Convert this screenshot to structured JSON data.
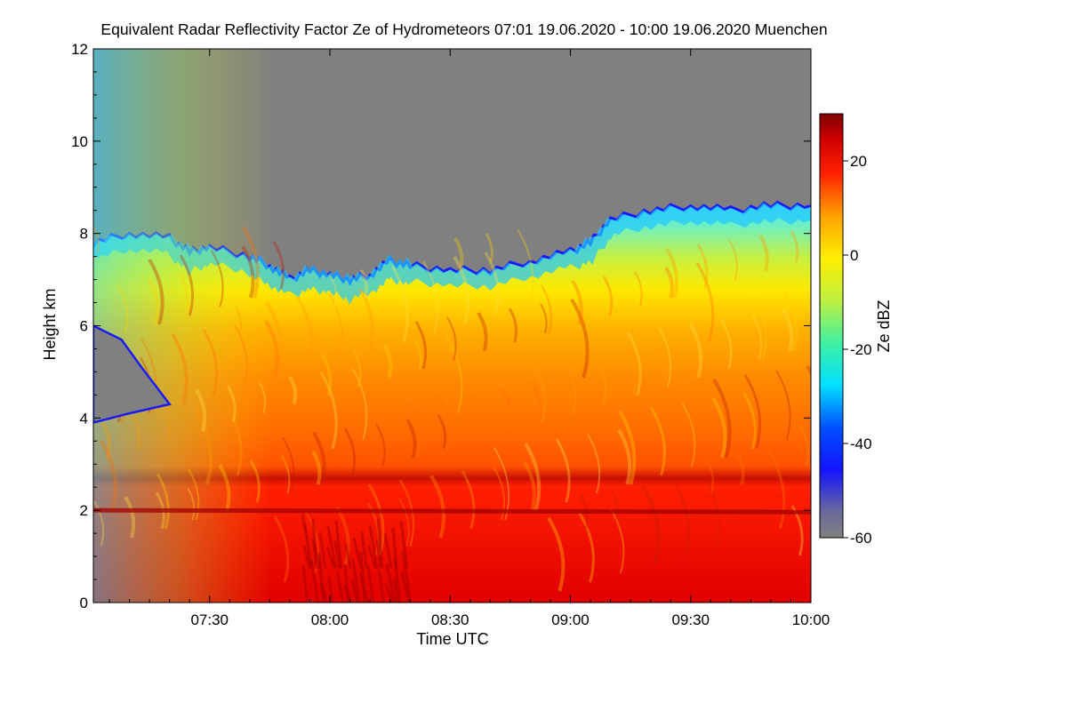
{
  "chart_data": {
    "type": "heatmap",
    "title": "Equivalent Radar Reflectivity Factor Ze of Hydrometeors   07:01 19.06.2020 - 10:00 19.06.2020 Muenchen",
    "xlabel": "Time UTC",
    "ylabel": "Height km",
    "x_ticks": [
      "07:30",
      "08:00",
      "08:30",
      "09:00",
      "09:30",
      "10:00"
    ],
    "x_tick_minutes": [
      450,
      480,
      510,
      540,
      570,
      600
    ],
    "x_range_minutes": [
      421,
      600
    ],
    "y_ticks": [
      0,
      2,
      4,
      6,
      8,
      10,
      12
    ],
    "ylim": [
      0,
      12
    ],
    "colorbar": {
      "label": "Ze dBZ",
      "ticks": [
        -60,
        -40,
        -20,
        0,
        20
      ],
      "range": [
        -60,
        30
      ]
    },
    "no_signal_color": "#808080",
    "series": [
      {
        "cloud_top_km": [
          [
            421,
            7.8
          ],
          [
            430,
            8.0
          ],
          [
            440,
            7.9
          ],
          [
            445,
            7.6
          ],
          [
            450,
            7.7
          ],
          [
            460,
            7.5
          ],
          [
            465,
            7.3
          ],
          [
            470,
            7.0
          ],
          [
            475,
            7.2
          ],
          [
            480,
            7.1
          ],
          [
            485,
            7.0
          ],
          [
            490,
            7.1
          ],
          [
            495,
            7.4
          ],
          [
            500,
            7.3
          ],
          [
            510,
            7.2
          ],
          [
            520,
            7.2
          ],
          [
            530,
            7.4
          ],
          [
            540,
            7.6
          ],
          [
            545,
            7.8
          ],
          [
            550,
            8.3
          ],
          [
            560,
            8.5
          ],
          [
            570,
            8.6
          ],
          [
            580,
            8.5
          ],
          [
            590,
            8.6
          ],
          [
            600,
            8.6
          ]
        ],
        "lower_gap": {
          "top_km": [
            [
              421,
              6.0
            ],
            [
              428,
              5.7
            ],
            [
              433,
              5.1
            ],
            [
              440,
              4.3
            ]
          ],
          "bottom_km": [
            [
              421,
              3.9
            ],
            [
              430,
              4.1
            ],
            [
              440,
              4.3
            ]
          ]
        },
        "melting_layer_km": 2.0,
        "reflectivity_dbz_profile": [
          [
            0.0,
            24
          ],
          [
            1.0,
            22
          ],
          [
            1.9,
            20
          ],
          [
            2.05,
            12
          ],
          [
            3.0,
            8
          ],
          [
            4.0,
            5
          ],
          [
            5.0,
            2
          ],
          [
            6.0,
            -4
          ],
          [
            7.0,
            -12
          ],
          [
            7.6,
            -20
          ],
          [
            8.4,
            -30
          ]
        ]
      }
    ]
  }
}
